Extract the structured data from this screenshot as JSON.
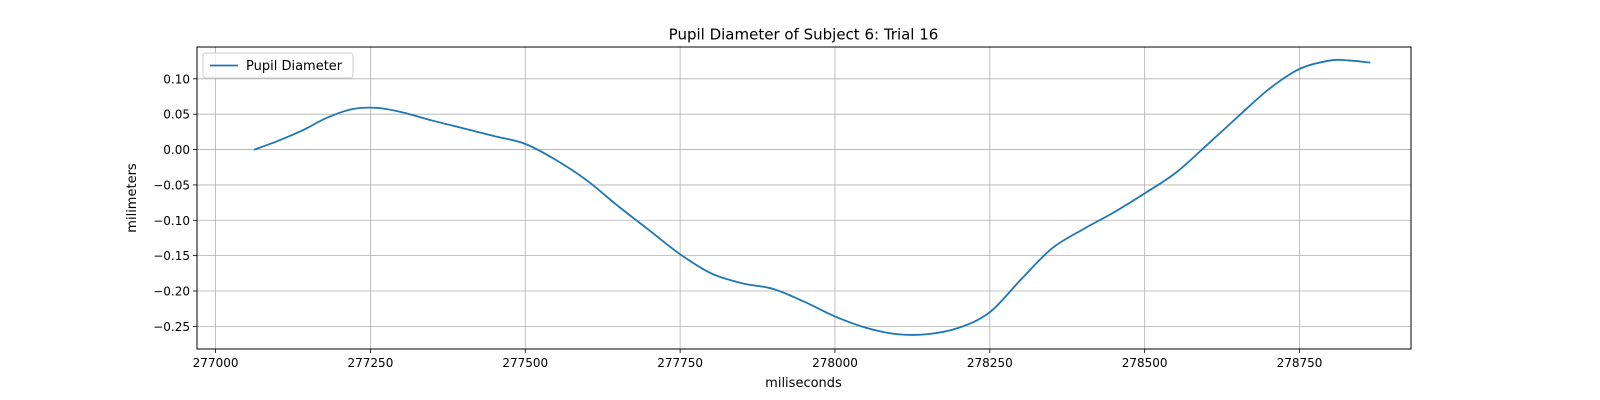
{
  "chart_data": {
    "type": "line",
    "title": "Pupil Diameter of Subject 6: Trial 16",
    "xlabel": "miliseconds",
    "ylabel": "milimeters",
    "xlim": [
      276970,
      278930
    ],
    "ylim": [
      -0.282,
      0.145
    ],
    "xticks": [
      277000,
      277250,
      277500,
      277750,
      278000,
      278250,
      278500,
      278750
    ],
    "yticks": [
      -0.25,
      -0.2,
      -0.15,
      -0.1,
      -0.05,
      0.0,
      0.05,
      0.1
    ],
    "ytick_labels": [
      "−0.25",
      "−0.20",
      "−0.15",
      "−0.10",
      "−0.05",
      "0.00",
      "0.05",
      "0.10"
    ],
    "grid": true,
    "legend_position": "top-left",
    "series": [
      {
        "name": "Pupil Diameter",
        "color": "#1f77b4",
        "x": [
          277063,
          277100,
          277140,
          277180,
          277220,
          277260,
          277300,
          277350,
          277400,
          277450,
          277500,
          277550,
          277600,
          277650,
          277700,
          277750,
          277800,
          277850,
          277900,
          277950,
          278000,
          278050,
          278100,
          278150,
          278200,
          278250,
          278300,
          278350,
          278400,
          278450,
          278500,
          278550,
          278600,
          278650,
          278700,
          278750,
          278800,
          278830,
          278863
        ],
        "y": [
          0.0,
          0.012,
          0.027,
          0.045,
          0.057,
          0.059,
          0.053,
          0.041,
          0.03,
          0.019,
          0.008,
          -0.015,
          -0.044,
          -0.08,
          -0.114,
          -0.148,
          -0.175,
          -0.189,
          -0.197,
          -0.215,
          -0.236,
          -0.252,
          -0.261,
          -0.261,
          -0.252,
          -0.23,
          -0.184,
          -0.14,
          -0.113,
          -0.089,
          -0.062,
          -0.033,
          0.006,
          0.046,
          0.085,
          0.114,
          0.126,
          0.126,
          0.123
        ]
      }
    ]
  }
}
